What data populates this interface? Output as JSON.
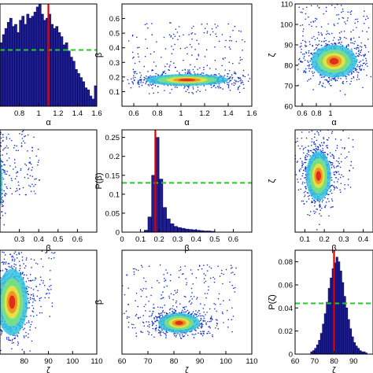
{
  "chart_data": [
    {
      "type": "bar",
      "row": 0,
      "col": 0,
      "xlabel": "α",
      "ylabel": "",
      "xlim": [
        0.6,
        1.6
      ],
      "ylim": [
        0,
        1
      ],
      "xticks": [
        0.8,
        1,
        1.2,
        1.4,
        1.6
      ],
      "yticks": [],
      "bins": [
        0.6,
        0.625,
        0.65,
        0.675,
        0.7,
        0.725,
        0.75,
        0.775,
        0.8,
        0.825,
        0.85,
        0.875,
        0.9,
        0.925,
        0.95,
        0.975,
        1.0,
        1.025,
        1.05,
        1.075,
        1.1,
        1.125,
        1.15,
        1.175,
        1.2,
        1.225,
        1.25,
        1.275,
        1.3,
        1.325,
        1.35,
        1.375,
        1.4,
        1.425,
        1.45,
        1.475,
        1.5,
        1.525,
        1.55,
        1.575
      ],
      "values": [
        0.62,
        0.7,
        0.76,
        0.82,
        0.86,
        0.78,
        0.8,
        0.72,
        0.84,
        0.88,
        0.8,
        0.9,
        0.86,
        0.88,
        0.92,
        0.97,
        1.0,
        0.9,
        0.84,
        0.86,
        0.9,
        0.8,
        0.76,
        0.78,
        0.72,
        0.68,
        0.6,
        0.62,
        0.54,
        0.48,
        0.44,
        0.36,
        0.32,
        0.28,
        0.24,
        0.18,
        0.16,
        0.1,
        0.07,
        0.2
      ],
      "vline": 1.1,
      "hline": 0.55
    },
    {
      "type": "scatter",
      "row": 0,
      "col": 1,
      "xlabel": "α",
      "ylabel": "β",
      "xlim": [
        0.5,
        1.6
      ],
      "ylim": [
        0,
        0.7
      ],
      "xticks": [
        0.6,
        0.8,
        1,
        1.2,
        1.4,
        1.6
      ],
      "yticks": [
        0.1,
        0.2,
        0.3,
        0.4,
        0.5,
        0.6
      ],
      "center": [
        1.05,
        0.18
      ],
      "spread": [
        0.22,
        0.025
      ],
      "tail": 0.25
    },
    {
      "type": "scatter",
      "row": 0,
      "col": 2,
      "xlabel": "α",
      "ylabel": "ζ",
      "xlim": [
        0.5,
        1.6
      ],
      "ylim": [
        60,
        110
      ],
      "xticks": [
        0.6,
        0.8,
        1
      ],
      "yticks": [
        60,
        70,
        80,
        90,
        100,
        110
      ],
      "center": [
        1.05,
        82
      ],
      "spread": [
        0.2,
        5
      ],
      "tail": 0.2
    },
    {
      "type": "scatter",
      "row": 1,
      "col": 0,
      "xlabel": "β",
      "ylabel": "",
      "xlim": [
        0.2,
        0.7
      ],
      "ylim": [
        0,
        1
      ],
      "xticks": [
        0.3,
        0.4,
        0.5,
        0.6
      ],
      "yticks": [],
      "center": [
        0.18,
        0.5
      ],
      "spread": [
        0.02,
        0.2
      ],
      "tail": 0.3
    },
    {
      "type": "bar",
      "row": 1,
      "col": 1,
      "xlabel": "β",
      "ylabel": "P(β)",
      "xlim": [
        0,
        0.7
      ],
      "ylim": [
        0,
        0.27
      ],
      "xticks": [
        0,
        0.1,
        0.2,
        0.3,
        0.4,
        0.5,
        0.6
      ],
      "yticks": [
        0,
        0.05,
        0.1,
        0.15,
        0.2,
        0.25
      ],
      "bins": [
        0.12,
        0.14,
        0.16,
        0.18,
        0.2,
        0.22,
        0.24,
        0.26,
        0.28,
        0.3,
        0.32,
        0.34,
        0.36,
        0.38,
        0.4,
        0.42,
        0.44,
        0.46,
        0.48
      ],
      "values": [
        0.005,
        0.04,
        0.15,
        0.25,
        0.14,
        0.065,
        0.035,
        0.022,
        0.015,
        0.012,
        0.01,
        0.008,
        0.007,
        0.006,
        0.005,
        0.004,
        0.003,
        0.003,
        0.002
      ],
      "vline": 0.18,
      "hline": 0.13
    },
    {
      "type": "scatter",
      "row": 1,
      "col": 2,
      "xlabel": "β",
      "ylabel": "ζ",
      "xlim": [
        0.05,
        0.45
      ],
      "ylim": [
        0,
        1
      ],
      "xticks": [
        0.1,
        0.2,
        0.3,
        0.4
      ],
      "yticks": [],
      "center": [
        0.17,
        0.55
      ],
      "spread": [
        0.04,
        0.15
      ],
      "tail": 0.2
    },
    {
      "type": "scatter",
      "row": 2,
      "col": 0,
      "xlabel": "ζ",
      "ylabel": "",
      "xlim": [
        70,
        110
      ],
      "ylim": [
        0,
        1
      ],
      "xticks": [
        80,
        90,
        100,
        110
      ],
      "yticks": [],
      "center": [
        75,
        0.5
      ],
      "spread": [
        4,
        0.2
      ],
      "tail": 0.2
    },
    {
      "type": "scatter",
      "row": 2,
      "col": 1,
      "xlabel": "ζ",
      "ylabel": "β",
      "xlim": [
        60,
        110
      ],
      "ylim": [
        0,
        1
      ],
      "xticks": [
        60,
        70,
        80,
        90,
        100,
        110
      ],
      "yticks": [],
      "center": [
        82,
        0.3
      ],
      "spread": [
        5,
        0.06
      ],
      "tail": 0.3
    },
    {
      "type": "bar",
      "row": 2,
      "col": 2,
      "xlabel": "ζ",
      "ylabel": "P(ζ)",
      "xlim": [
        60,
        100
      ],
      "ylim": [
        0,
        0.09
      ],
      "xticks": [
        60,
        70,
        80,
        90
      ],
      "yticks": [
        0,
        0.02,
        0.04,
        0.06,
        0.08
      ],
      "bins": [
        68,
        69,
        70,
        71,
        72,
        73,
        74,
        75,
        76,
        77,
        78,
        79,
        80,
        81,
        82,
        83,
        84,
        85,
        86,
        87,
        88,
        89,
        90,
        91,
        92,
        93,
        94,
        95,
        96
      ],
      "values": [
        0.002,
        0.003,
        0.005,
        0.008,
        0.012,
        0.018,
        0.026,
        0.035,
        0.045,
        0.057,
        0.066,
        0.074,
        0.079,
        0.084,
        0.08,
        0.072,
        0.062,
        0.05,
        0.04,
        0.03,
        0.022,
        0.015,
        0.01,
        0.007,
        0.005,
        0.003,
        0.002,
        0.002,
        0.001
      ],
      "vline": 80,
      "hline": 0.044
    }
  ]
}
